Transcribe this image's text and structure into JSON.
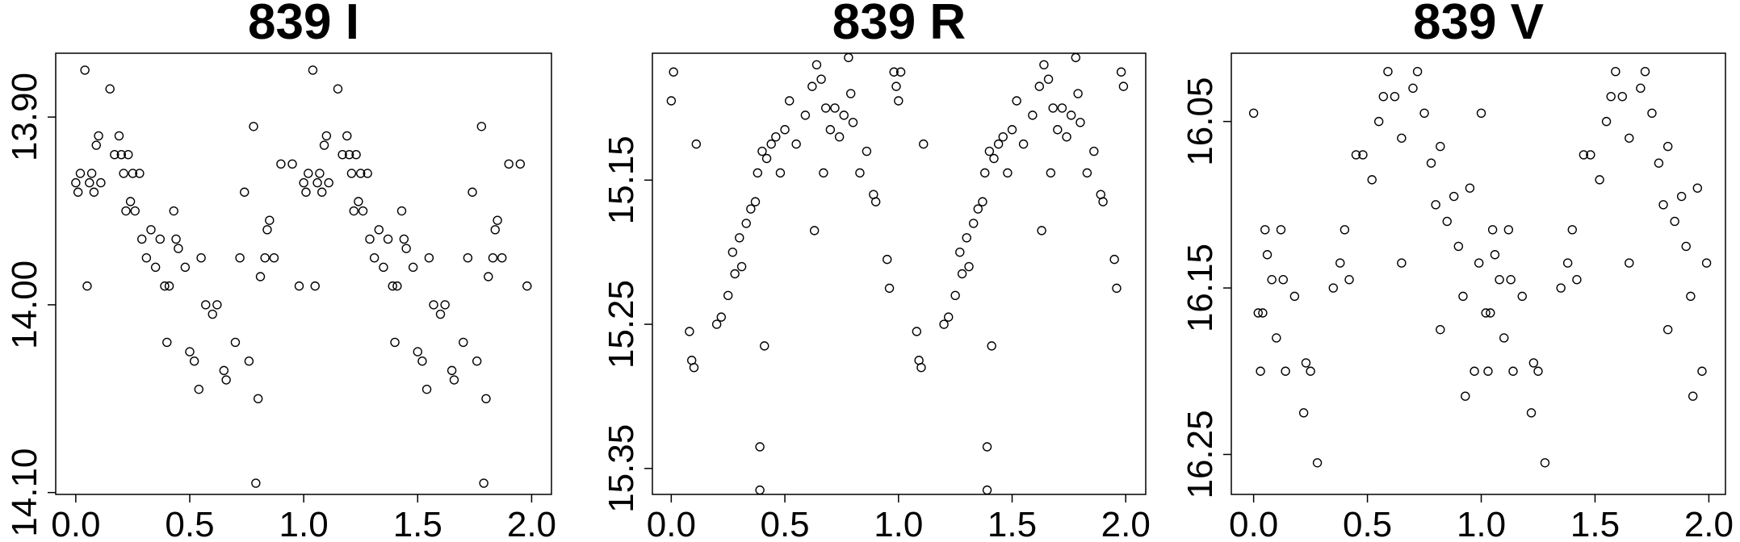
{
  "chart_data": [
    {
      "type": "scatter",
      "title": "839 I",
      "color": "#000000",
      "marker": "open-circle",
      "x": [
        0.0,
        0.01,
        0.02,
        0.04,
        0.05,
        0.06,
        0.07,
        0.08,
        0.09,
        0.1,
        0.11,
        0.15,
        0.17,
        0.19,
        0.2,
        0.21,
        0.22,
        0.23,
        0.24,
        0.25,
        0.26,
        0.28,
        0.29,
        0.31,
        0.33,
        0.35,
        0.37,
        0.39,
        0.4,
        0.41,
        0.43,
        0.44,
        0.45,
        0.48,
        0.5,
        0.52,
        0.54,
        0.55,
        0.57,
        0.6,
        0.62,
        0.65,
        0.66,
        0.7,
        0.72,
        0.74,
        0.76,
        0.78,
        0.79,
        0.8,
        0.81,
        0.83,
        0.84,
        0.85,
        0.87,
        0.9,
        0.95,
        0.98,
        1.0,
        1.01,
        1.02,
        1.04,
        1.05,
        1.06,
        1.07,
        1.08,
        1.09,
        1.1,
        1.11,
        1.15,
        1.17,
        1.19,
        1.2,
        1.21,
        1.22,
        1.23,
        1.24,
        1.25,
        1.26,
        1.28,
        1.29,
        1.31,
        1.33,
        1.35,
        1.37,
        1.39,
        1.4,
        1.41,
        1.43,
        1.44,
        1.45,
        1.48,
        1.5,
        1.52,
        1.54,
        1.55,
        1.57,
        1.6,
        1.62,
        1.65,
        1.66,
        1.7,
        1.72,
        1.74,
        1.76,
        1.78,
        1.79,
        1.8,
        1.81,
        1.83,
        1.84,
        1.85,
        1.87,
        1.9,
        1.95,
        1.98
      ],
      "values": [
        13.935,
        13.94,
        13.93,
        13.875,
        13.99,
        13.935,
        13.93,
        13.94,
        13.915,
        13.91,
        13.935,
        13.885,
        13.92,
        13.91,
        13.92,
        13.93,
        13.95,
        13.92,
        13.945,
        13.93,
        13.95,
        13.93,
        13.965,
        13.975,
        13.96,
        13.98,
        13.965,
        13.99,
        14.02,
        13.99,
        13.95,
        13.965,
        13.97,
        13.98,
        14.025,
        14.03,
        14.045,
        13.975,
        14.0,
        14.005,
        14.0,
        14.035,
        14.04,
        14.02,
        13.975,
        13.94,
        14.03,
        13.905,
        14.095,
        14.05,
        13.985,
        13.975,
        13.96,
        13.955,
        13.975,
        13.925,
        13.925,
        13.99,
        13.935,
        13.94,
        13.93,
        13.875,
        13.99,
        13.935,
        13.93,
        13.94,
        13.915,
        13.91,
        13.935,
        13.885,
        13.92,
        13.91,
        13.92,
        13.93,
        13.95,
        13.92,
        13.945,
        13.93,
        13.95,
        13.93,
        13.965,
        13.975,
        13.96,
        13.98,
        13.965,
        13.99,
        14.02,
        13.99,
        13.95,
        13.965,
        13.97,
        13.98,
        14.025,
        14.03,
        14.045,
        13.975,
        14.0,
        14.005,
        14.0,
        14.035,
        14.04,
        14.02,
        13.975,
        13.94,
        14.03,
        13.905,
        14.095,
        14.05,
        13.985,
        13.975,
        13.96,
        13.955,
        13.975,
        13.925,
        13.925,
        13.99
      ],
      "xlim": [
        -0.088,
        2.087
      ],
      "ylim": [
        14.101,
        13.866
      ],
      "xticks": [
        {
          "value": 0,
          "label": "0.0"
        },
        {
          "value": 0.5,
          "label": "0.5"
        },
        {
          "value": 1,
          "label": "1.0"
        },
        {
          "value": 1.5,
          "label": "1.5"
        },
        {
          "value": 2,
          "label": "2.0"
        }
      ],
      "yticks": [
        {
          "value": 13.9,
          "label": "13.90"
        },
        {
          "value": 14.0,
          "label": "14.00"
        },
        {
          "value": 14.1,
          "label": "14.10"
        }
      ]
    },
    {
      "type": "scatter",
      "title": "839 R",
      "color": "#000000",
      "marker": "open-circle",
      "x": [
        0.0,
        0.01,
        0.08,
        0.09,
        0.1,
        0.11,
        0.2,
        0.22,
        0.25,
        0.27,
        0.28,
        0.3,
        0.31,
        0.33,
        0.35,
        0.37,
        0.38,
        0.39,
        0.39,
        0.4,
        0.41,
        0.42,
        0.44,
        0.46,
        0.48,
        0.5,
        0.52,
        0.55,
        0.59,
        0.62,
        0.63,
        0.64,
        0.66,
        0.67,
        0.68,
        0.7,
        0.72,
        0.74,
        0.76,
        0.78,
        0.79,
        0.8,
        0.83,
        0.86,
        0.89,
        0.9,
        0.95,
        0.96,
        0.98,
        0.99,
        1.0,
        1.01,
        1.08,
        1.09,
        1.1,
        1.11,
        1.2,
        1.22,
        1.25,
        1.27,
        1.28,
        1.3,
        1.31,
        1.33,
        1.35,
        1.37,
        1.38,
        1.39,
        1.39,
        1.4,
        1.41,
        1.42,
        1.44,
        1.46,
        1.48,
        1.5,
        1.52,
        1.55,
        1.59,
        1.62,
        1.63,
        1.64,
        1.66,
        1.67,
        1.68,
        1.7,
        1.72,
        1.74,
        1.76,
        1.78,
        1.79,
        1.8,
        1.83,
        1.86,
        1.89,
        1.9,
        1.95,
        1.96,
        1.98,
        1.99
      ],
      "values": [
        15.095,
        15.075,
        15.255,
        15.275,
        15.28,
        15.125,
        15.25,
        15.245,
        15.23,
        15.2,
        15.215,
        15.19,
        15.21,
        15.18,
        15.17,
        15.165,
        15.145,
        15.335,
        15.365,
        15.13,
        15.265,
        15.135,
        15.125,
        15.12,
        15.145,
        15.115,
        15.095,
        15.125,
        15.105,
        15.085,
        15.185,
        15.07,
        15.08,
        15.145,
        15.1,
        15.115,
        15.1,
        15.12,
        15.105,
        15.065,
        15.09,
        15.11,
        15.145,
        15.13,
        15.16,
        15.165,
        15.205,
        15.225,
        15.075,
        15.085,
        15.095,
        15.075,
        15.255,
        15.275,
        15.28,
        15.125,
        15.25,
        15.245,
        15.23,
        15.2,
        15.215,
        15.19,
        15.21,
        15.18,
        15.17,
        15.165,
        15.145,
        15.335,
        15.365,
        15.13,
        15.265,
        15.135,
        15.125,
        15.12,
        15.145,
        15.115,
        15.095,
        15.125,
        15.105,
        15.085,
        15.185,
        15.07,
        15.08,
        15.145,
        15.1,
        15.115,
        15.1,
        15.12,
        15.105,
        15.065,
        15.09,
        15.11,
        15.145,
        15.13,
        15.16,
        15.165,
        15.205,
        15.225,
        15.075,
        15.085
      ],
      "xlim": [
        -0.083,
        2.088
      ],
      "ylim": [
        15.368,
        15.062
      ],
      "xticks": [
        {
          "value": 0,
          "label": "0.0"
        },
        {
          "value": 0.5,
          "label": "0.5"
        },
        {
          "value": 1,
          "label": "1.0"
        },
        {
          "value": 1.5,
          "label": "1.5"
        },
        {
          "value": 2,
          "label": "2.0"
        }
      ],
      "yticks": [
        15.15,
        15.25,
        15.35
      ]
    },
    {
      "type": "scatter",
      "title": "839 V",
      "color": "#000000",
      "marker": "open-circle",
      "x": [
        0.0,
        0.02,
        0.03,
        0.04,
        0.05,
        0.06,
        0.08,
        0.1,
        0.12,
        0.13,
        0.14,
        0.18,
        0.22,
        0.23,
        0.25,
        0.28,
        0.35,
        0.38,
        0.4,
        0.42,
        0.45,
        0.48,
        0.52,
        0.55,
        0.57,
        0.59,
        0.62,
        0.65,
        0.65,
        0.7,
        0.72,
        0.75,
        0.78,
        0.8,
        0.82,
        0.82,
        0.85,
        0.88,
        0.9,
        0.92,
        0.93,
        0.95,
        0.97,
        0.99,
        1.0,
        1.02,
        1.03,
        1.04,
        1.05,
        1.06,
        1.08,
        1.1,
        1.12,
        1.13,
        1.14,
        1.18,
        1.22,
        1.23,
        1.25,
        1.28,
        1.35,
        1.38,
        1.4,
        1.42,
        1.45,
        1.48,
        1.52,
        1.55,
        1.57,
        1.59,
        1.62,
        1.65,
        1.65,
        1.7,
        1.72,
        1.75,
        1.78,
        1.8,
        1.82,
        1.82,
        1.85,
        1.88,
        1.9,
        1.92,
        1.93,
        1.95,
        1.97,
        1.99
      ],
      "values": [
        16.045,
        16.165,
        16.2,
        16.165,
        16.115,
        16.13,
        16.145,
        16.18,
        16.115,
        16.145,
        16.2,
        16.155,
        16.225,
        16.195,
        16.2,
        16.255,
        16.15,
        16.135,
        16.115,
        16.145,
        16.07,
        16.07,
        16.085,
        16.05,
        16.035,
        16.02,
        16.035,
        16.06,
        16.135,
        16.03,
        16.02,
        16.045,
        16.075,
        16.1,
        16.065,
        16.175,
        16.11,
        16.095,
        16.125,
        16.155,
        16.215,
        16.09,
        16.2,
        16.135,
        16.045,
        16.165,
        16.2,
        16.165,
        16.115,
        16.13,
        16.145,
        16.18,
        16.115,
        16.145,
        16.2,
        16.155,
        16.225,
        16.195,
        16.2,
        16.255,
        16.15,
        16.135,
        16.115,
        16.145,
        16.07,
        16.07,
        16.085,
        16.05,
        16.035,
        16.02,
        16.035,
        16.06,
        16.135,
        16.03,
        16.02,
        16.045,
        16.075,
        16.1,
        16.065,
        16.175,
        16.11,
        16.095,
        16.125,
        16.155,
        16.215,
        16.09,
        16.2,
        16.135
      ],
      "xlim": [
        -0.098,
        2.073
      ],
      "ylim": [
        16.274,
        16.009
      ],
      "xticks": [
        {
          "value": 0,
          "label": "0.0"
        },
        {
          "value": 0.5,
          "label": "0.5"
        },
        {
          "value": 1,
          "label": "1.0"
        },
        {
          "value": 1.5,
          "label": "1.5"
        },
        {
          "value": 2,
          "label": "2.0"
        }
      ],
      "yticks": [
        16.05,
        16.15,
        16.25
      ]
    }
  ]
}
